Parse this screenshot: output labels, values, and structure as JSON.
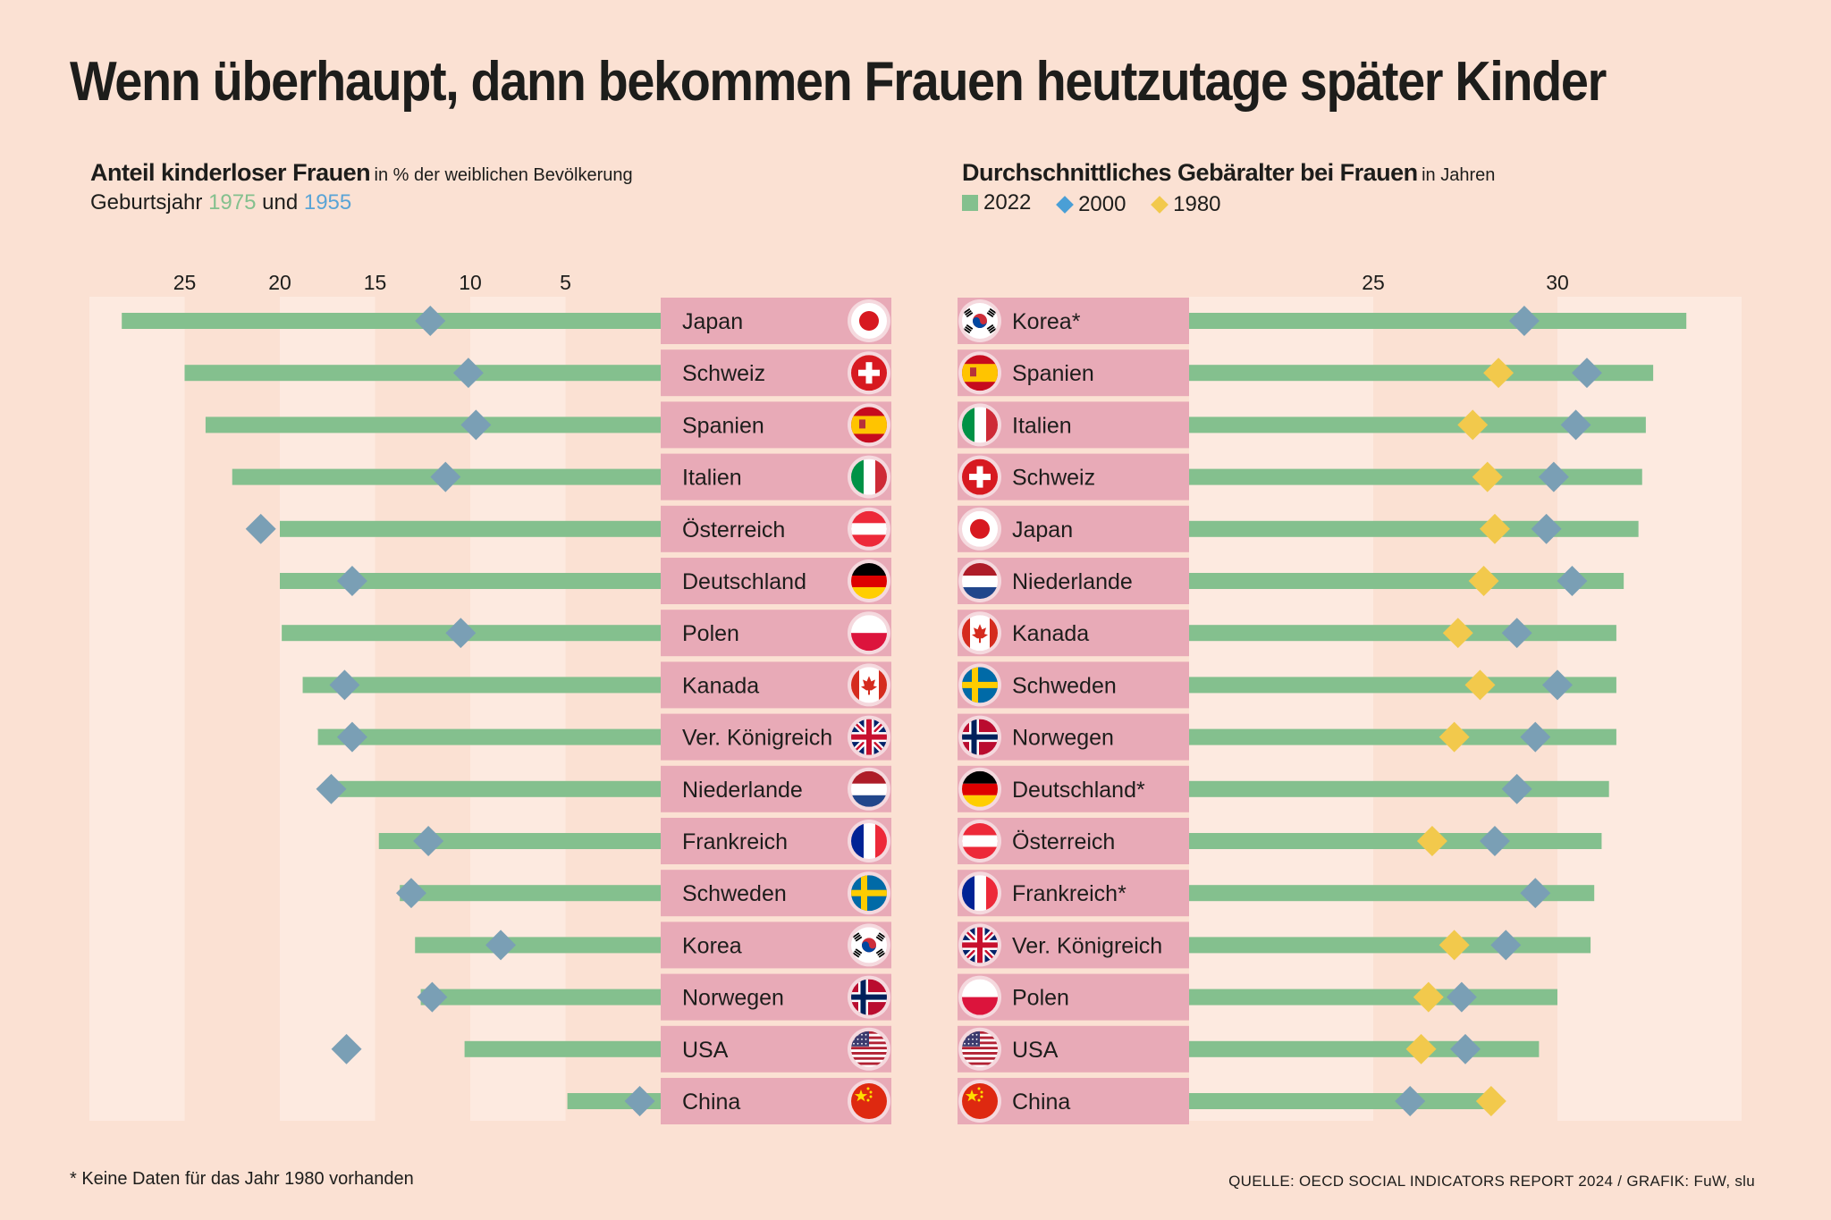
{
  "title": "Wenn überhaupt, dann bekommen Frauen heutzutage später Kinder",
  "left_header": {
    "title": "Anteil kinderloser Frauen",
    "unit": "in % der weiblichen Bevölkerung",
    "line2_prefix": "Geburtsjahr",
    "year_a": "1975",
    "connector": "und",
    "year_b": "1955"
  },
  "right_header": {
    "title": "Durchschnittliches Gebäralter bei Frauen",
    "unit": "in Jahren",
    "legend": [
      {
        "label": "2022",
        "shape": "square",
        "color": "#84c08e"
      },
      {
        "label": "2000",
        "shape": "diamond",
        "color": "#4a9fd6"
      },
      {
        "label": "1980",
        "shape": "diamond",
        "color": "#f2c94c"
      }
    ]
  },
  "footnote": "* Keine Daten für das Jahr 1980 vorhanden",
  "source": "QUELLE: OECD SOCIAL INDICATORS REPORT 2024 / GRAFIK: FuW, slu",
  "colors": {
    "background": "#fbe1d3",
    "band": "#fdeae0",
    "bar": "#84c08e",
    "diamond_blue": "#7a9fb5",
    "diamond_yellow": "#f2c94c",
    "label_box": "#e8aab7",
    "title_year_a": "#84c08e",
    "title_year_b": "#5aa4d6"
  },
  "chart_data": [
    {
      "type": "bar",
      "orientation": "horizontal",
      "title": "Anteil kinderloser Frauen",
      "unit": "in % der weiblichen Bevölkerung",
      "xlim": [
        0,
        30
      ],
      "ticks": [
        25,
        20,
        15,
        10,
        5
      ],
      "categories": [
        {
          "name": "Japan",
          "flag": "jp-flag-icon"
        },
        {
          "name": "Schweiz",
          "flag": "ch-flag-icon"
        },
        {
          "name": "Spanien",
          "flag": "es-flag-icon"
        },
        {
          "name": "Italien",
          "flag": "it-flag-icon"
        },
        {
          "name": "Österreich",
          "flag": "at-flag-icon"
        },
        {
          "name": "Deutschland",
          "flag": "de-flag-icon"
        },
        {
          "name": "Polen",
          "flag": "pl-flag-icon"
        },
        {
          "name": "Kanada",
          "flag": "ca-flag-icon"
        },
        {
          "name": "Ver. Königreich",
          "flag": "gb-flag-icon"
        },
        {
          "name": "Niederlande",
          "flag": "nl-flag-icon"
        },
        {
          "name": "Frankreich",
          "flag": "fr-flag-icon"
        },
        {
          "name": "Schweden",
          "flag": "se-flag-icon"
        },
        {
          "name": "Korea",
          "flag": "kr-flag-icon"
        },
        {
          "name": "Norwegen",
          "flag": "no-flag-icon"
        },
        {
          "name": "USA",
          "flag": "us-flag-icon"
        },
        {
          "name": "China",
          "flag": "cn-flag-icon"
        }
      ],
      "series": [
        {
          "name": "1975",
          "mark": "bar",
          "values": [
            28.3,
            25.0,
            23.9,
            22.5,
            20.0,
            20.0,
            19.9,
            18.8,
            18.0,
            17.2,
            14.8,
            13.7,
            12.9,
            12.6,
            10.3,
            4.9
          ]
        },
        {
          "name": "1955",
          "mark": "diamond",
          "values": [
            12.1,
            10.1,
            9.7,
            11.3,
            21.0,
            16.2,
            10.5,
            16.6,
            16.2,
            17.3,
            12.2,
            13.1,
            8.4,
            12.0,
            16.5,
            1.1
          ]
        }
      ]
    },
    {
      "type": "bar",
      "orientation": "horizontal",
      "title": "Durchschnittliches Gebäralter bei Frauen",
      "unit": "in Jahren",
      "xlim": [
        20,
        35
      ],
      "ticks": [
        25,
        30
      ],
      "categories": [
        {
          "name": "Korea*",
          "flag": "kr-flag-icon"
        },
        {
          "name": "Spanien",
          "flag": "es-flag-icon"
        },
        {
          "name": "Italien",
          "flag": "it-flag-icon"
        },
        {
          "name": "Schweiz",
          "flag": "ch-flag-icon"
        },
        {
          "name": "Japan",
          "flag": "jp-flag-icon"
        },
        {
          "name": "Niederlande",
          "flag": "nl-flag-icon"
        },
        {
          "name": "Kanada",
          "flag": "ca-flag-icon"
        },
        {
          "name": "Schweden",
          "flag": "se-flag-icon"
        },
        {
          "name": "Norwegen",
          "flag": "no-flag-icon"
        },
        {
          "name": "Deutschland*",
          "flag": "de-flag-icon"
        },
        {
          "name": "Österreich",
          "flag": "at-flag-icon"
        },
        {
          "name": "Frankreich*",
          "flag": "fr-flag-icon"
        },
        {
          "name": "Ver. Königreich",
          "flag": "gb-flag-icon"
        },
        {
          "name": "Polen",
          "flag": "pl-flag-icon"
        },
        {
          "name": "USA",
          "flag": "us-flag-icon"
        },
        {
          "name": "China",
          "flag": "cn-flag-icon"
        }
      ],
      "series": [
        {
          "name": "2022",
          "mark": "bar",
          "values": [
            33.5,
            32.6,
            32.4,
            32.3,
            32.2,
            31.8,
            31.6,
            31.6,
            31.6,
            31.4,
            31.2,
            31.0,
            30.9,
            30.0,
            29.5,
            28.2
          ]
        },
        {
          "name": "2000",
          "mark": "diamond",
          "values": [
            29.1,
            30.8,
            30.5,
            29.9,
            29.7,
            30.4,
            28.9,
            30.0,
            29.4,
            28.9,
            28.3,
            29.4,
            28.6,
            27.4,
            27.5,
            26.0
          ]
        },
        {
          "name": "1980",
          "mark": "diamond",
          "values": [
            null,
            28.4,
            27.7,
            28.1,
            28.3,
            28.0,
            27.3,
            27.9,
            27.2,
            null,
            26.6,
            null,
            27.2,
            26.5,
            26.3,
            28.2
          ]
        }
      ]
    }
  ]
}
